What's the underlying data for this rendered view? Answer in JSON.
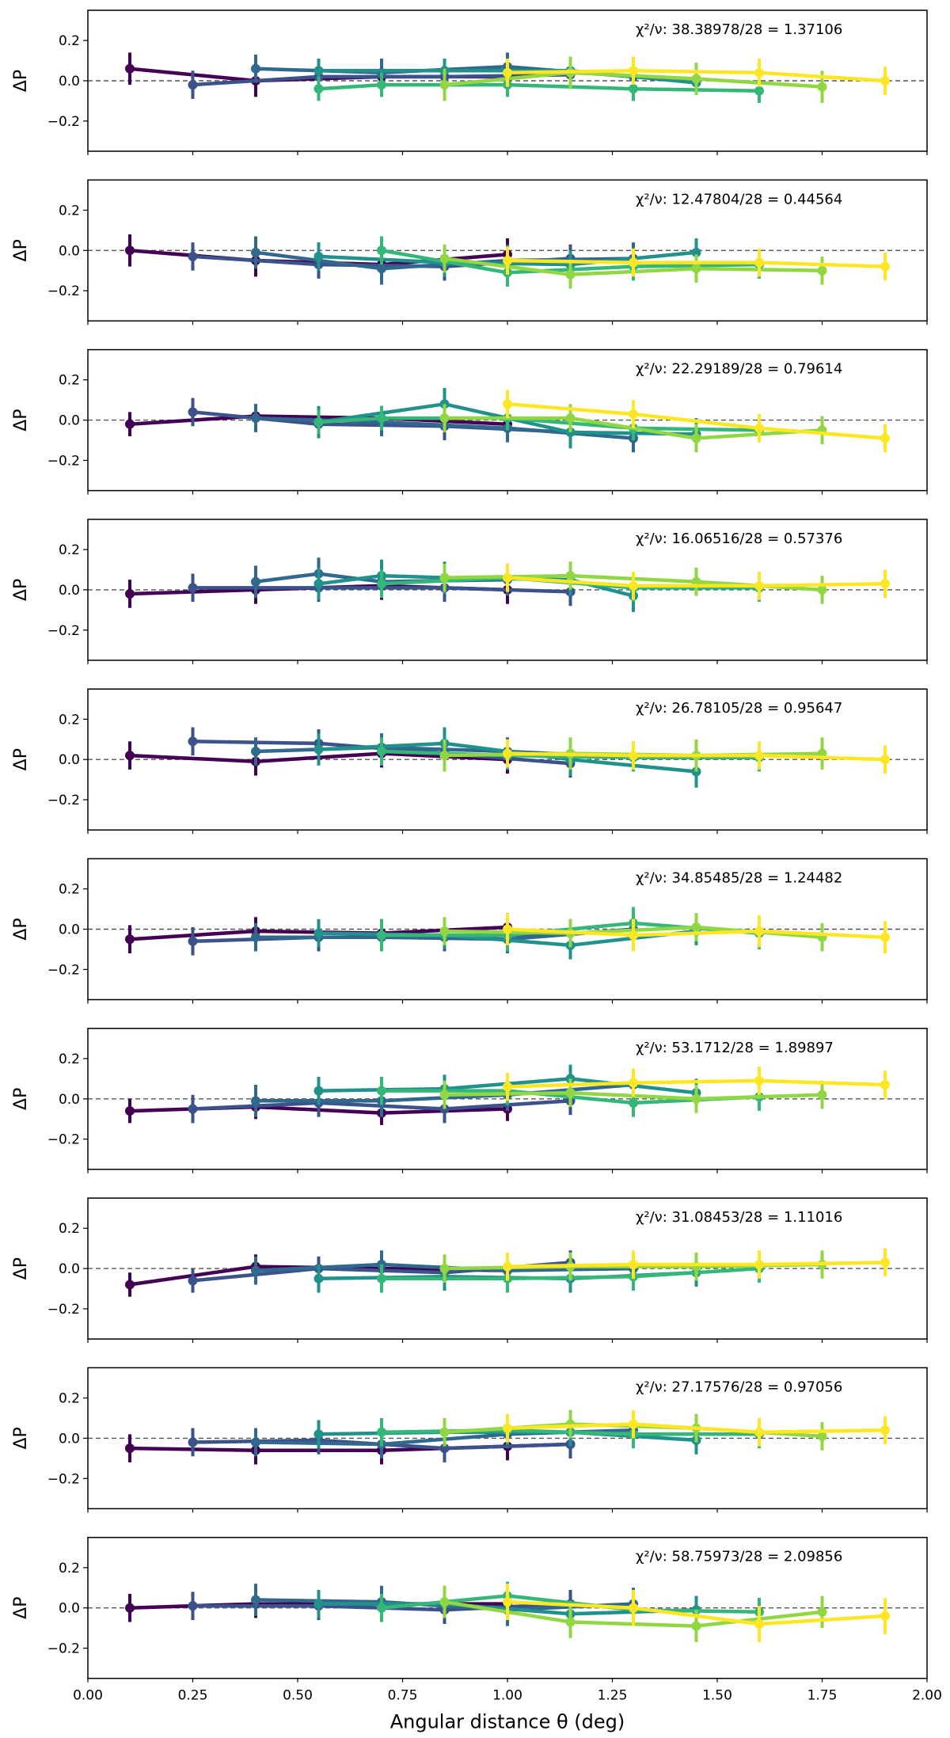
{
  "figure": {
    "xlabel": "Angular distance θ (deg)",
    "ylabel": "ΔP",
    "xlim": [
      0.0,
      2.0
    ],
    "ylim": [
      -0.35,
      0.35
    ],
    "xticks": [
      0.0,
      0.25,
      0.5,
      0.75,
      1.0,
      1.25,
      1.5,
      1.75,
      2.0
    ],
    "xtick_labels": [
      "0.00",
      "0.25",
      "0.50",
      "0.75",
      "1.00",
      "1.25",
      "1.50",
      "1.75",
      "2.00"
    ],
    "yticks": [
      0.2,
      0.0,
      -0.2
    ],
    "ytick_labels": [
      "0.2",
      "0.0",
      "−0.2"
    ],
    "series_colors": [
      "#440154",
      "#3b528b",
      "#31688e",
      "#21918c",
      "#35b779",
      "#90d743",
      "#fde725"
    ],
    "reference_line": 0.0
  },
  "chart_data": [
    {
      "type": "line",
      "chi_label": "χ²/ν: 38.38978/28 = 1.37106",
      "series": [
        {
          "x": [
            0.1,
            0.4,
            0.7,
            1.0
          ],
          "y": [
            0.06,
            0.0,
            0.02,
            0.02
          ],
          "err": 0.08
        },
        {
          "x": [
            0.25,
            0.55,
            0.85,
            1.15
          ],
          "y": [
            -0.02,
            0.02,
            0.02,
            0.03
          ],
          "err": 0.07
        },
        {
          "x": [
            0.4,
            0.7,
            1.0,
            1.3
          ],
          "y": [
            0.06,
            0.04,
            0.07,
            0.02
          ],
          "err": 0.07
        },
        {
          "x": [
            0.55,
            0.85,
            1.15,
            1.45
          ],
          "y": [
            0.05,
            0.05,
            0.05,
            -0.01
          ],
          "err": 0.06
        },
        {
          "x": [
            0.55,
            0.7,
            1.0,
            1.3,
            1.6
          ],
          "y": [
            -0.04,
            -0.02,
            -0.02,
            -0.04,
            -0.05
          ],
          "err": 0.06
        },
        {
          "x": [
            0.85,
            1.15,
            1.45,
            1.75
          ],
          "y": [
            -0.02,
            0.04,
            0.01,
            -0.03
          ],
          "err": 0.08
        },
        {
          "x": [
            1.0,
            1.3,
            1.6,
            1.9
          ],
          "y": [
            0.04,
            0.05,
            0.04,
            0.0
          ],
          "err": 0.07
        }
      ]
    },
    {
      "type": "line",
      "chi_label": "χ²/ν: 12.47804/28 = 0.44564",
      "series": [
        {
          "x": [
            0.1,
            0.4,
            0.7,
            1.0
          ],
          "y": [
            0.0,
            -0.05,
            -0.07,
            -0.02
          ],
          "err": 0.08
        },
        {
          "x": [
            0.25,
            0.55,
            0.85,
            1.15
          ],
          "y": [
            -0.03,
            -0.07,
            -0.08,
            -0.04
          ],
          "err": 0.07
        },
        {
          "x": [
            0.4,
            0.7,
            1.0,
            1.3
          ],
          "y": [
            -0.01,
            -0.09,
            -0.05,
            -0.04
          ],
          "err": 0.08
        },
        {
          "x": [
            0.55,
            0.85,
            1.15,
            1.45
          ],
          "y": [
            -0.03,
            -0.06,
            -0.07,
            -0.01
          ],
          "err": 0.07
        },
        {
          "x": [
            0.7,
            1.0,
            1.3,
            1.6
          ],
          "y": [
            0.0,
            -0.11,
            -0.08,
            -0.07
          ],
          "err": 0.07
        },
        {
          "x": [
            0.85,
            1.15,
            1.45,
            1.75
          ],
          "y": [
            -0.04,
            -0.12,
            -0.09,
            -0.1
          ],
          "err": 0.07
        },
        {
          "x": [
            1.0,
            1.3,
            1.6,
            1.9
          ],
          "y": [
            -0.05,
            -0.06,
            -0.06,
            -0.08
          ],
          "err": 0.07
        }
      ]
    },
    {
      "type": "line",
      "chi_label": "χ²/ν: 22.29189/28 = 0.79614",
      "series": [
        {
          "x": [
            0.1,
            0.4,
            0.7,
            1.0
          ],
          "y": [
            -0.02,
            0.02,
            0.01,
            -0.02
          ],
          "err": 0.06
        },
        {
          "x": [
            0.25,
            0.55,
            0.85,
            1.15
          ],
          "y": [
            0.04,
            -0.02,
            -0.03,
            -0.06
          ],
          "err": 0.07
        },
        {
          "x": [
            0.4,
            0.7,
            1.0,
            1.3
          ],
          "y": [
            0.01,
            -0.01,
            -0.04,
            -0.09
          ],
          "err": 0.07
        },
        {
          "x": [
            0.55,
            0.85,
            1.15,
            1.45
          ],
          "y": [
            -0.01,
            0.08,
            -0.06,
            -0.07
          ],
          "err": 0.08
        },
        {
          "x": [
            0.55,
            0.7,
            1.0,
            1.3,
            1.6
          ],
          "y": [
            -0.01,
            0.01,
            0.01,
            -0.04,
            -0.05
          ],
          "err": 0.06
        },
        {
          "x": [
            0.85,
            1.15,
            1.45,
            1.75
          ],
          "y": [
            0.01,
            0.01,
            -0.09,
            -0.05
          ],
          "err": 0.07
        },
        {
          "x": [
            1.0,
            1.3,
            1.6,
            1.9
          ],
          "y": [
            0.08,
            0.03,
            -0.04,
            -0.09
          ],
          "err": 0.07
        }
      ]
    },
    {
      "type": "line",
      "chi_label": "χ²/ν: 16.06516/28 = 0.57376",
      "series": [
        {
          "x": [
            0.1,
            0.4,
            0.7,
            1.0
          ],
          "y": [
            -0.02,
            0.0,
            0.02,
            0.0
          ],
          "err": 0.07
        },
        {
          "x": [
            0.25,
            0.55,
            0.85,
            1.15
          ],
          "y": [
            0.01,
            0.01,
            0.01,
            -0.01
          ],
          "err": 0.07
        },
        {
          "x": [
            0.4,
            0.55,
            0.7,
            1.0
          ],
          "y": [
            0.04,
            0.08,
            0.04,
            0.05
          ],
          "err": 0.08
        },
        {
          "x": [
            0.55,
            0.7,
            0.85,
            1.15,
            1.3
          ],
          "y": [
            0.03,
            0.07,
            0.06,
            0.05,
            -0.03
          ],
          "err": 0.08
        },
        {
          "x": [
            0.7,
            1.0,
            1.3,
            1.6
          ],
          "y": [
            0.03,
            0.06,
            0.01,
            0.01
          ],
          "err": 0.07
        },
        {
          "x": [
            0.85,
            1.15,
            1.45,
            1.75
          ],
          "y": [
            0.06,
            0.07,
            0.04,
            0.0
          ],
          "err": 0.07
        },
        {
          "x": [
            1.0,
            1.3,
            1.6,
            1.9
          ],
          "y": [
            0.06,
            0.02,
            0.02,
            0.03
          ],
          "err": 0.07
        }
      ]
    },
    {
      "type": "line",
      "chi_label": "χ²/ν: 26.78105/28 = 0.95647",
      "series": [
        {
          "x": [
            0.1,
            0.4,
            0.7,
            1.0
          ],
          "y": [
            0.02,
            -0.01,
            0.03,
            0.0
          ],
          "err": 0.07
        },
        {
          "x": [
            0.25,
            0.55,
            0.85,
            1.15
          ],
          "y": [
            0.09,
            0.08,
            0.03,
            -0.02
          ],
          "err": 0.07
        },
        {
          "x": [
            0.4,
            0.7,
            1.0,
            1.3
          ],
          "y": [
            0.04,
            0.06,
            0.04,
            0.01
          ],
          "err": 0.07
        },
        {
          "x": [
            0.55,
            0.85,
            1.15,
            1.45
          ],
          "y": [
            0.05,
            0.08,
            0.0,
            -0.06
          ],
          "err": 0.08
        },
        {
          "x": [
            0.7,
            1.0,
            1.3,
            1.6
          ],
          "y": [
            0.04,
            0.02,
            0.01,
            0.01
          ],
          "err": 0.07
        },
        {
          "x": [
            0.85,
            1.15,
            1.45,
            1.75
          ],
          "y": [
            0.02,
            0.03,
            0.02,
            0.03
          ],
          "err": 0.08
        },
        {
          "x": [
            1.0,
            1.3,
            1.6,
            1.9
          ],
          "y": [
            0.03,
            0.02,
            0.02,
            0.0
          ],
          "err": 0.07
        }
      ]
    },
    {
      "type": "line",
      "chi_label": "χ²/ν: 34.85485/28 = 1.24482",
      "series": [
        {
          "x": [
            0.1,
            0.4,
            0.7,
            1.0
          ],
          "y": [
            -0.05,
            -0.01,
            -0.02,
            0.01
          ],
          "err": 0.07
        },
        {
          "x": [
            0.25,
            0.55,
            0.85,
            1.15
          ],
          "y": [
            -0.06,
            -0.04,
            -0.04,
            -0.02
          ],
          "err": 0.07
        },
        {
          "x": [
            0.4,
            0.7,
            1.0,
            1.3
          ],
          "y": [
            -0.04,
            -0.04,
            -0.05,
            0.0
          ],
          "err": 0.07
        },
        {
          "x": [
            0.55,
            0.85,
            1.15,
            1.45
          ],
          "y": [
            -0.02,
            -0.03,
            -0.08,
            -0.01
          ],
          "err": 0.07
        },
        {
          "x": [
            0.7,
            1.0,
            1.3,
            1.6
          ],
          "y": [
            -0.03,
            -0.03,
            0.03,
            -0.02
          ],
          "err": 0.08
        },
        {
          "x": [
            0.85,
            1.15,
            1.45,
            1.75
          ],
          "y": [
            -0.01,
            -0.02,
            0.01,
            -0.04
          ],
          "err": 0.07
        },
        {
          "x": [
            1.0,
            1.3,
            1.6,
            1.9
          ],
          "y": [
            0.0,
            -0.03,
            -0.01,
            -0.04
          ],
          "err": 0.08
        }
      ]
    },
    {
      "type": "line",
      "chi_label": "χ²/ν: 53.1712/28 = 1.89897",
      "series": [
        {
          "x": [
            0.1,
            0.4,
            0.7,
            1.0
          ],
          "y": [
            -0.06,
            -0.04,
            -0.07,
            -0.05
          ],
          "err": 0.06
        },
        {
          "x": [
            0.25,
            0.55,
            0.85,
            1.15
          ],
          "y": [
            -0.05,
            -0.02,
            -0.05,
            -0.01
          ],
          "err": 0.07
        },
        {
          "x": [
            0.4,
            0.7,
            1.0,
            1.3
          ],
          "y": [
            -0.01,
            -0.01,
            0.02,
            0.07
          ],
          "err": 0.08
        },
        {
          "x": [
            0.55,
            0.85,
            1.15,
            1.45
          ],
          "y": [
            0.04,
            0.05,
            0.1,
            0.03
          ],
          "err": 0.07
        },
        {
          "x": [
            0.7,
            1.0,
            1.3,
            1.6
          ],
          "y": [
            0.04,
            0.04,
            -0.02,
            0.01
          ],
          "err": 0.07
        },
        {
          "x": [
            0.85,
            1.15,
            1.45,
            1.75
          ],
          "y": [
            0.02,
            0.03,
            0.0,
            0.02
          ],
          "err": 0.07
        },
        {
          "x": [
            1.0,
            1.3,
            1.6,
            1.9
          ],
          "y": [
            0.06,
            0.08,
            0.09,
            0.07
          ],
          "err": 0.07
        }
      ]
    },
    {
      "type": "line",
      "chi_label": "χ²/ν: 31.08453/28 = 1.11016",
      "series": [
        {
          "x": [
            0.1,
            0.4,
            0.7,
            1.0
          ],
          "y": [
            -0.08,
            0.01,
            0.0,
            -0.01
          ],
          "err": 0.06
        },
        {
          "x": [
            0.25,
            0.55,
            0.85,
            1.15
          ],
          "y": [
            -0.06,
            0.0,
            -0.02,
            0.03
          ],
          "err": 0.06
        },
        {
          "x": [
            0.4,
            0.7,
            1.0,
            1.3
          ],
          "y": [
            -0.01,
            0.02,
            -0.01,
            0.0
          ],
          "err": 0.07
        },
        {
          "x": [
            0.55,
            0.85,
            1.15,
            1.45
          ],
          "y": [
            -0.05,
            -0.04,
            -0.05,
            -0.02
          ],
          "err": 0.07
        },
        {
          "x": [
            0.7,
            1.0,
            1.3,
            1.6
          ],
          "y": [
            -0.05,
            -0.05,
            -0.04,
            0.0
          ],
          "err": 0.07
        },
        {
          "x": [
            0.85,
            1.15,
            1.45,
            1.75
          ],
          "y": [
            0.0,
            0.01,
            0.01,
            0.02
          ],
          "err": 0.07
        },
        {
          "x": [
            1.0,
            1.3,
            1.6,
            1.9
          ],
          "y": [
            0.01,
            0.02,
            0.02,
            0.03
          ],
          "err": 0.07
        }
      ]
    },
    {
      "type": "line",
      "chi_label": "χ²/ν: 27.17576/28 = 0.97056",
      "series": [
        {
          "x": [
            0.1,
            0.4,
            0.7,
            1.0,
            1.15
          ],
          "y": [
            -0.05,
            -0.06,
            -0.06,
            -0.04,
            -0.03
          ],
          "err": 0.07
        },
        {
          "x": [
            0.25,
            0.55,
            0.85,
            1.15
          ],
          "y": [
            -0.02,
            -0.01,
            -0.05,
            -0.03
          ],
          "err": 0.07
        },
        {
          "x": [
            0.4,
            0.7,
            1.0,
            1.3
          ],
          "y": [
            -0.02,
            -0.03,
            0.02,
            0.04
          ],
          "err": 0.07
        },
        {
          "x": [
            0.55,
            0.85,
            1.15,
            1.45
          ],
          "y": [
            0.02,
            0.03,
            0.03,
            -0.01
          ],
          "err": 0.07
        },
        {
          "x": [
            0.7,
            1.0,
            1.3,
            1.6
          ],
          "y": [
            0.03,
            0.04,
            0.02,
            0.02
          ],
          "err": 0.07
        },
        {
          "x": [
            0.85,
            1.15,
            1.45,
            1.75
          ],
          "y": [
            0.03,
            0.07,
            0.05,
            0.01
          ],
          "err": 0.07
        },
        {
          "x": [
            1.0,
            1.3,
            1.6,
            1.9
          ],
          "y": [
            0.05,
            0.07,
            0.03,
            0.04
          ],
          "err": 0.07
        }
      ]
    },
    {
      "type": "line",
      "chi_label": "χ²/ν: 58.75973/28 = 2.09856",
      "series": [
        {
          "x": [
            0.1,
            0.4,
            0.7,
            1.0
          ],
          "y": [
            0.0,
            0.02,
            0.02,
            0.02
          ],
          "err": 0.07
        },
        {
          "x": [
            0.25,
            0.55,
            0.85,
            1.15
          ],
          "y": [
            0.01,
            0.01,
            -0.01,
            0.02
          ],
          "err": 0.07
        },
        {
          "x": [
            0.4,
            0.7,
            1.0,
            1.3
          ],
          "y": [
            0.04,
            0.03,
            -0.01,
            0.02
          ],
          "err": 0.08
        },
        {
          "x": [
            0.55,
            0.85,
            1.15,
            1.45
          ],
          "y": [
            0.02,
            0.02,
            -0.03,
            -0.01
          ],
          "err": 0.07
        },
        {
          "x": [
            0.7,
            1.0,
            1.3,
            1.6
          ],
          "y": [
            0.0,
            0.06,
            -0.01,
            -0.02
          ],
          "err": 0.07
        },
        {
          "x": [
            0.85,
            1.15,
            1.45,
            1.75
          ],
          "y": [
            0.03,
            -0.07,
            -0.09,
            -0.02
          ],
          "err": 0.08
        },
        {
          "x": [
            1.0,
            1.3,
            1.6,
            1.9
          ],
          "y": [
            0.03,
            0.0,
            -0.08,
            -0.04
          ],
          "err": 0.09
        }
      ]
    }
  ]
}
